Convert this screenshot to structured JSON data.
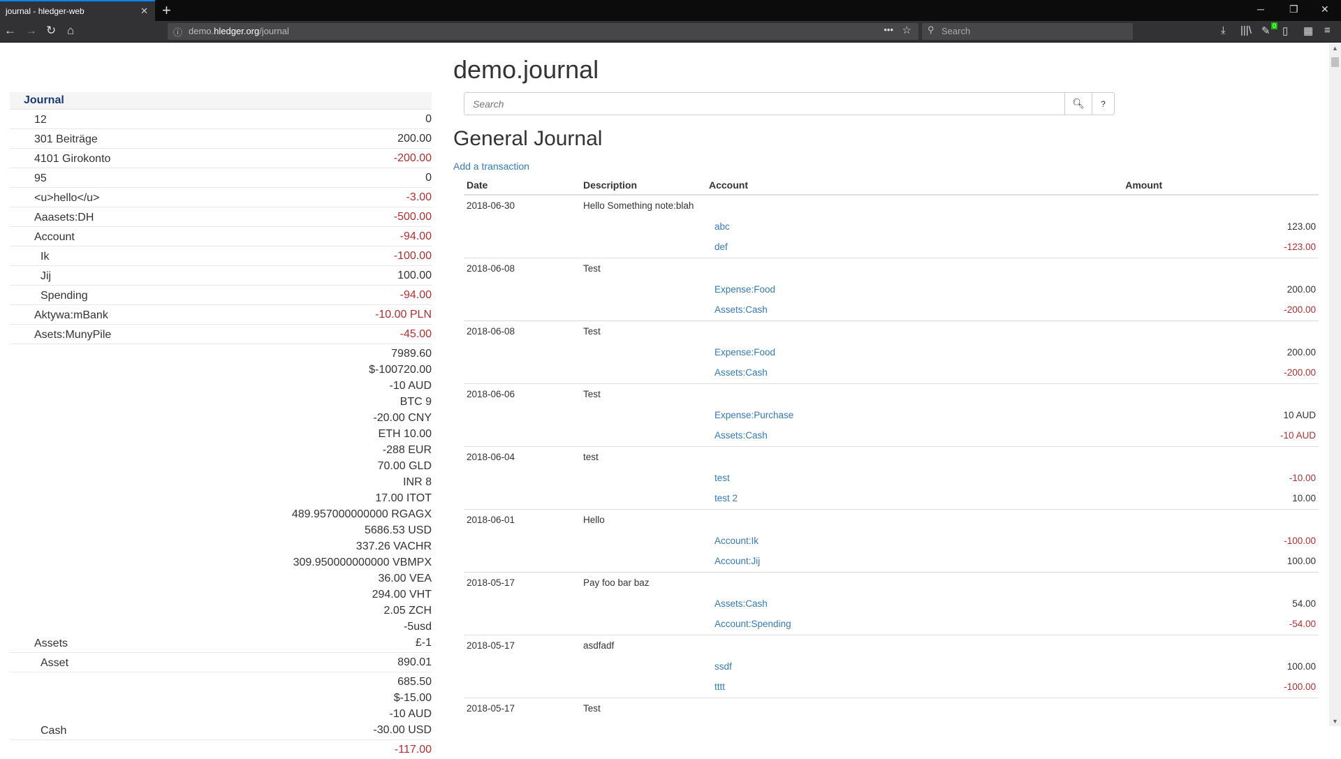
{
  "browser": {
    "tab_title": "journal - hledger-web",
    "url_host": "demo.",
    "url_domain": "hledger.org",
    "url_path": "/journal",
    "search_placeholder": "Search",
    "badge": "0"
  },
  "page": {
    "title": "demo.journal",
    "search_placeholder": "Search",
    "help": "?",
    "heading": "General Journal",
    "add_link": "Add a transaction"
  },
  "sidebar": {
    "header": "Journal",
    "rows": [
      {
        "name": "12",
        "indent": 0,
        "amounts": [
          "0"
        ]
      },
      {
        "name": "301 Beiträge",
        "indent": 0,
        "amounts": [
          "200.00"
        ]
      },
      {
        "name": "4101 Girokonto",
        "indent": 0,
        "amounts": [
          "-200.00"
        ]
      },
      {
        "name": "95",
        "indent": 0,
        "amounts": [
          "0"
        ]
      },
      {
        "name": "<u>hello</u>",
        "indent": 0,
        "amounts": [
          "-3.00"
        ]
      },
      {
        "name": "Aaasets:DH",
        "indent": 0,
        "amounts": [
          "-500.00"
        ]
      },
      {
        "name": "Account",
        "indent": 0,
        "amounts": [
          "-94.00"
        ]
      },
      {
        "name": "Ik",
        "indent": 1,
        "amounts": [
          "-100.00"
        ]
      },
      {
        "name": "Jij",
        "indent": 1,
        "amounts": [
          "100.00"
        ]
      },
      {
        "name": "Spending",
        "indent": 1,
        "amounts": [
          "-94.00"
        ]
      },
      {
        "name": "Aktywa:mBank",
        "indent": 0,
        "amounts": [
          "-10.00 PLN"
        ]
      },
      {
        "name": "Asets:MunyPile",
        "indent": 0,
        "amounts": [
          "-45.00"
        ]
      },
      {
        "name": "Assets",
        "indent": 0,
        "multi": true,
        "amounts": [
          "7989.60",
          "$-100720.00",
          "-10 AUD",
          "BTC 9",
          "-20.00 CNY",
          "ETH 10.00",
          "-288 EUR",
          "70.00 GLD",
          "INR 8",
          "17.00 ITOT",
          "489.957000000000 RGAGX",
          "5686.53 USD",
          "337.26 VACHR",
          "309.950000000000 VBMPX",
          "36.00 VEA",
          "294.00 VHT",
          "2.05 ZCH",
          "-5usd",
          "£-1"
        ]
      },
      {
        "name": "Asset",
        "indent": 1,
        "amounts": [
          "890.01"
        ]
      },
      {
        "name": "Cash",
        "indent": 1,
        "multi": true,
        "amounts": [
          "685.50",
          "$-15.00",
          "-10 AUD",
          "-30.00 USD"
        ]
      },
      {
        "name": "",
        "indent": 1,
        "amounts": [
          "-117.00"
        ]
      }
    ]
  },
  "table": {
    "headers": {
      "date": "Date",
      "description": "Description",
      "account": "Account",
      "amount": "Amount"
    },
    "transactions": [
      {
        "date": "2018-06-30",
        "description": "Hello Something note:blah",
        "postings": [
          {
            "account": "abc",
            "amount": "123.00"
          },
          {
            "account": "def",
            "amount": "-123.00"
          }
        ]
      },
      {
        "date": "2018-06-08",
        "description": "Test",
        "postings": [
          {
            "account": "Expense:Food",
            "amount": "200.00"
          },
          {
            "account": "Assets:Cash",
            "amount": "-200.00"
          }
        ]
      },
      {
        "date": "2018-06-08",
        "description": "Test",
        "postings": [
          {
            "account": "Expense:Food",
            "amount": "200.00"
          },
          {
            "account": "Assets:Cash",
            "amount": "-200.00"
          }
        ]
      },
      {
        "date": "2018-06-06",
        "description": "Test",
        "postings": [
          {
            "account": "Expense:Purchase",
            "amount": "10 AUD"
          },
          {
            "account": "Assets:Cash",
            "amount": "-10 AUD"
          }
        ]
      },
      {
        "date": "2018-06-04",
        "description": "test",
        "postings": [
          {
            "account": "test",
            "amount": "-10.00"
          },
          {
            "account": "test 2",
            "amount": "10.00"
          }
        ]
      },
      {
        "date": "2018-06-01",
        "description": "Hello",
        "postings": [
          {
            "account": "Account:Ik",
            "amount": "-100.00"
          },
          {
            "account": "Account:Jij",
            "amount": "100.00"
          }
        ]
      },
      {
        "date": "2018-05-17",
        "description": "Pay foo bar baz",
        "postings": [
          {
            "account": "Assets:Cash",
            "amount": "54.00"
          },
          {
            "account": "Account:Spending",
            "amount": "-54.00"
          }
        ]
      },
      {
        "date": "2018-05-17",
        "description": "asdfadf",
        "postings": [
          {
            "account": "ssdf",
            "amount": "100.00"
          },
          {
            "account": "tttt",
            "amount": "-100.00"
          }
        ]
      },
      {
        "date": "2018-05-17",
        "description": "Test",
        "postings": []
      }
    ]
  },
  "colors": {
    "negative": "#b03030",
    "link": "#337ab7",
    "sidebar_header": "#1a3a7a"
  }
}
